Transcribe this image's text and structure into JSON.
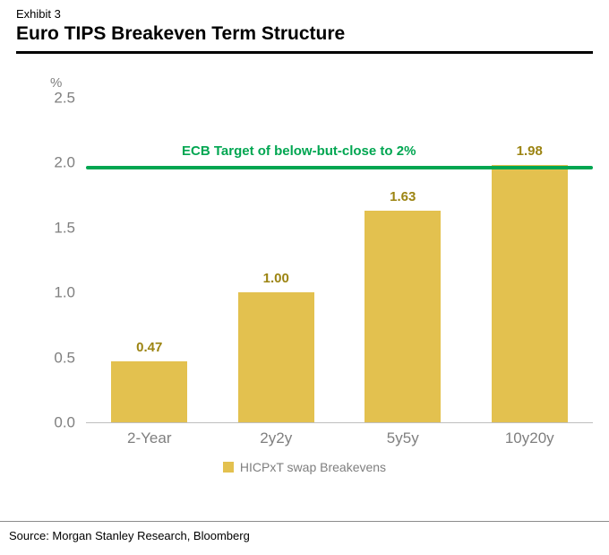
{
  "header": {
    "exhibit": "Exhibit 3",
    "title": "Euro TIPS Breakeven Term Structure"
  },
  "chart_data": {
    "type": "bar",
    "title": "Euro TIPS Breakeven Term Structure",
    "y_unit": "%",
    "categories": [
      "2-Year",
      "2y2y",
      "5y5y",
      "10y20y"
    ],
    "values": [
      0.47,
      1.0,
      1.63,
      1.98
    ],
    "value_labels": [
      "0.47",
      "1.00",
      "1.63",
      "1.98"
    ],
    "ylim": [
      0,
      2.5
    ],
    "yticks": [
      2.5,
      2.0,
      1.5,
      1.0,
      0.5,
      0.0
    ],
    "grid": false,
    "legend": "HICPxT swap Breakevens",
    "legend_position": "bottom",
    "bar_color": "#E3C14F",
    "label_color": "#9C8412",
    "target_line": {
      "value": 1.95,
      "label": "ECB Target of below-but-close to 2%",
      "color": "#00A651"
    }
  },
  "footer": {
    "source": "Source: Morgan Stanley Research, Bloomberg"
  }
}
